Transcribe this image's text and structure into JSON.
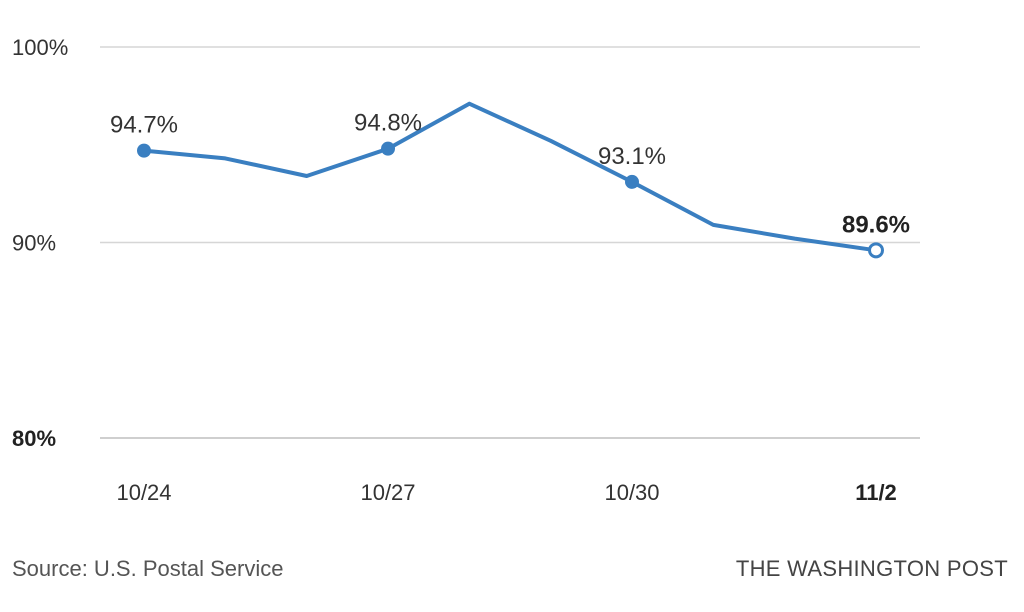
{
  "chart_data": {
    "type": "line",
    "x": [
      "10/24",
      "10/25",
      "10/26",
      "10/27",
      "10/28",
      "10/29",
      "10/30",
      "10/31",
      "11/1",
      "11/2"
    ],
    "series": [
      {
        "values": [
          94.7,
          94.3,
          93.4,
          94.8,
          97.1,
          95.2,
          93.1,
          90.9,
          90.2,
          89.6
        ]
      }
    ],
    "x_tick_labels": [
      "10/24",
      "10/27",
      "10/30",
      "11/2"
    ],
    "y_ticks": [
      80,
      90,
      100
    ],
    "y_tick_labels": [
      "80%",
      "90%",
      "100%"
    ],
    "ylim": [
      80,
      100
    ],
    "data_labels": [
      {
        "x": "10/24",
        "text": "94.7%"
      },
      {
        "x": "10/27",
        "text": "94.8%"
      },
      {
        "x": "10/30",
        "text": "93.1%"
      },
      {
        "x": "11/2",
        "text": "89.6%"
      }
    ],
    "grid": true,
    "line_color": "#3a7fc1",
    "title": "",
    "xlabel": "",
    "ylabel": ""
  },
  "footer": {
    "source": "Source: U.S. Postal Service",
    "credit": "THE WASHINGTON POST"
  }
}
